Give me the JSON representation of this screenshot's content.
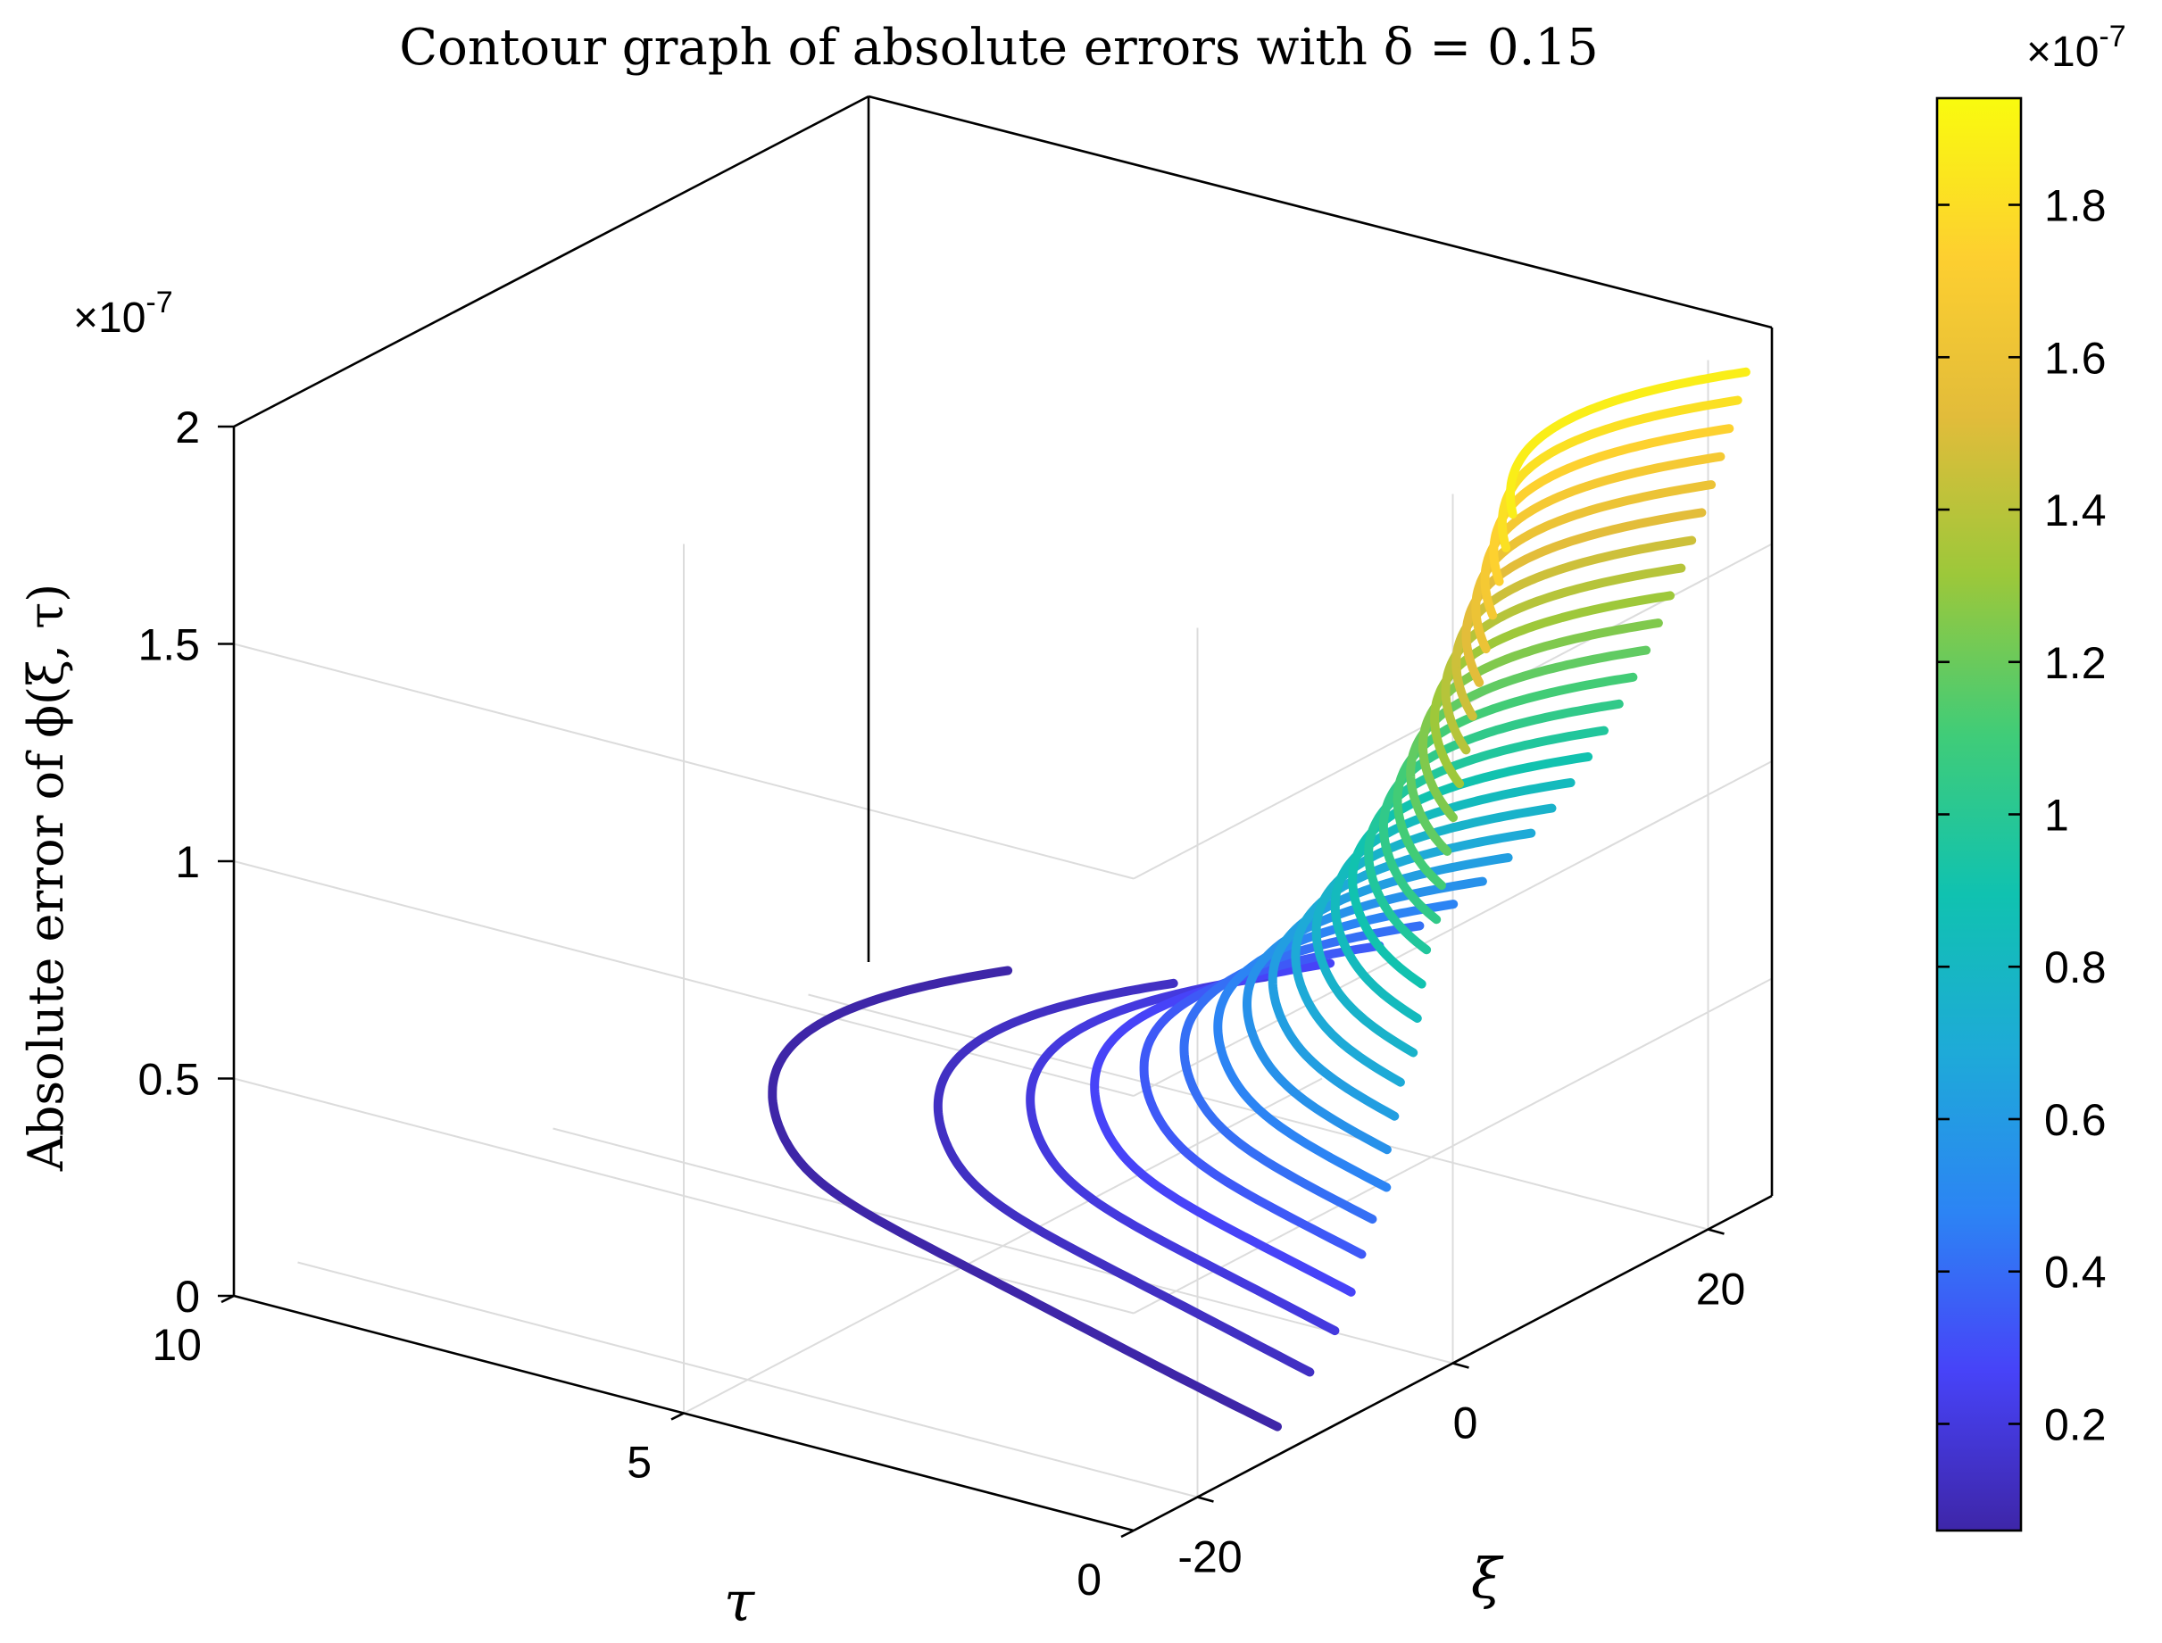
{
  "chart_data": {
    "type": "contour3",
    "title": "Contour graph of absolute errors with δ = 0.15",
    "zlabel": "Absolute error of ϕ(ξ, τ)",
    "xlabel": "τ",
    "ylabel": "ξ",
    "tau_range": [
      0,
      10
    ],
    "xi_range": [
      -25,
      25
    ],
    "zlim": [
      0,
      2
    ],
    "z_exponent_label": "×10",
    "z_exponent_power": "-7",
    "tau_ticks": [
      "0",
      "5",
      "10"
    ],
    "xi_ticks": [
      "-20",
      "0",
      "20"
    ],
    "z_ticks": [
      "0",
      "0.5",
      "1",
      "1.5",
      "2"
    ],
    "z_tick_values": [
      0,
      0.5,
      1,
      1.5,
      2
    ],
    "colorbar": {
      "exponent_label": "×10",
      "exponent_power": "-7",
      "min": 0.06,
      "max": 1.94,
      "ticks": [
        "0.2",
        "0.4",
        "0.6",
        "0.8",
        "1",
        "1.2",
        "1.4",
        "1.6",
        "1.8"
      ],
      "tick_values": [
        0.2,
        0.4,
        0.6,
        0.8,
        1.0,
        1.2,
        1.4,
        1.6,
        1.8
      ],
      "colormap": [
        "#3e26a8",
        "#4743f8",
        "#2c84f4",
        "#1eaad8",
        "#10c2b0",
        "#40cc78",
        "#9cc83a",
        "#e2bc3a",
        "#fdcf30",
        "#f9fb0e"
      ]
    },
    "series": [
      {
        "level": 0.06
      },
      {
        "level": 0.13
      },
      {
        "level": 0.2
      },
      {
        "level": 0.27
      },
      {
        "level": 0.34
      },
      {
        "level": 0.41
      },
      {
        "level": 0.48
      },
      {
        "level": 0.55
      },
      {
        "level": 0.62
      },
      {
        "level": 0.69
      },
      {
        "level": 0.76
      },
      {
        "level": 0.83
      },
      {
        "level": 0.9
      },
      {
        "level": 0.97
      },
      {
        "level": 1.04
      },
      {
        "level": 1.11
      },
      {
        "level": 1.18
      },
      {
        "level": 1.25
      },
      {
        "level": 1.32
      },
      {
        "level": 1.39
      },
      {
        "level": 1.46
      },
      {
        "level": 1.53
      },
      {
        "level": 1.6
      },
      {
        "level": 1.67
      },
      {
        "level": 1.74
      },
      {
        "level": 1.81
      },
      {
        "level": 1.88
      }
    ],
    "grid": true
  }
}
